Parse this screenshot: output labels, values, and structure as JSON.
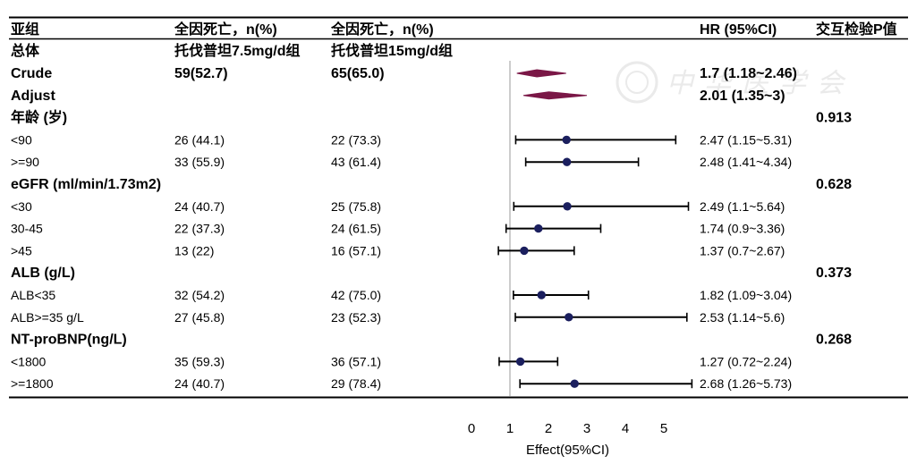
{
  "header": {
    "col_subgroup": "亚组",
    "col_group1": "全因死亡，n(%)",
    "col_group2": "全因死亡，n(%)",
    "col_hr": "HR (95%CI)",
    "col_p": "交互检验P值"
  },
  "subheader": {
    "subgroup": "总体",
    "group1": "托伐普坦7.5mg/d组",
    "group2": "托伐普坦15mg/d组"
  },
  "rows": [
    {
      "label": "Crude",
      "bold": true,
      "n1": "59(52.7)",
      "n2": "65(65.0)",
      "hr_text": "1.7 (1.18~2.46)",
      "est": 1.7,
      "lo": 1.18,
      "hi": 2.46,
      "shape": "diamond"
    },
    {
      "label": "Adjust",
      "bold": true,
      "hr_text": "2.01 (1.35~3)",
      "est": 2.01,
      "lo": 1.35,
      "hi": 3,
      "shape": "diamond"
    },
    {
      "label": "年龄 (岁)",
      "bold": true,
      "p": "0.913"
    },
    {
      "label": "<90",
      "n1": "26 (44.1)",
      "n2": "22 (73.3)",
      "hr_text": "2.47 (1.15~5.31)",
      "est": 2.47,
      "lo": 1.15,
      "hi": 5.31
    },
    {
      "label": ">=90",
      "n1": "33 (55.9)",
      "n2": "43 (61.4)",
      "hr_text": "2.48 (1.41~4.34)",
      "est": 2.48,
      "lo": 1.41,
      "hi": 4.34
    },
    {
      "label": "eGFR (ml/min/1.73m2)",
      "bold": true,
      "p": "0.628"
    },
    {
      "label": "<30",
      "n1": "24 (40.7)",
      "n2": "25 (75.8)",
      "hr_text": "2.49 (1.1~5.64)",
      "est": 2.49,
      "lo": 1.1,
      "hi": 5.64
    },
    {
      "label": "30-45",
      "n1": "22 (37.3)",
      "n2": "24 (61.5)",
      "hr_text": "1.74 (0.9~3.36)",
      "est": 1.74,
      "lo": 0.9,
      "hi": 3.36
    },
    {
      "label": ">45",
      "n1": "13 (22)",
      "n2": "16 (57.1)",
      "hr_text": "1.37 (0.7~2.67)",
      "est": 1.37,
      "lo": 0.7,
      "hi": 2.67
    },
    {
      "label": "ALB (g/L)",
      "bold": true,
      "p": "0.373"
    },
    {
      "label": "ALB<35",
      "n1": "32 (54.2)",
      "n2": "42 (75.0)",
      "hr_text": "1.82 (1.09~3.04)",
      "est": 1.82,
      "lo": 1.09,
      "hi": 3.04
    },
    {
      "label": "ALB>=35 g/L",
      "n1": "27 (45.8)",
      "n2": "23 (52.3)",
      "hr_text": "2.53 (1.14~5.6)",
      "est": 2.53,
      "lo": 1.14,
      "hi": 5.6
    },
    {
      "label": "NT-proBNP(ng/L)",
      "bold": true,
      "p": "0.268"
    },
    {
      "label": "<1800",
      "n1": "35 (59.3)",
      "n2": "36 (57.1)",
      "hr_text": "1.27 (0.72~2.24)",
      "est": 1.27,
      "lo": 0.72,
      "hi": 2.24
    },
    {
      "label": ">=1800",
      "n1": "24 (40.7)",
      "n2": "29 (78.4)",
      "hr_text": "2.68 (1.26~5.73)",
      "est": 2.68,
      "lo": 1.26,
      "hi": 5.73
    }
  ],
  "axis": {
    "ticks": [
      0,
      1,
      2,
      3,
      4,
      5
    ],
    "xlim": [
      0,
      5
    ],
    "reference": 1,
    "xlabel": "Effect(95%CI)"
  },
  "watermark": "中华医学会",
  "colors": {
    "point": "#1b1f5e",
    "diamond": "#7a1746",
    "line": "#000000",
    "reference": "#9a9a9a",
    "watermark": "#d9d9d9"
  },
  "chart_data": {
    "type": "forest",
    "categories": [
      "Crude",
      "Adjust",
      "<90",
      ">=90",
      "<30",
      "30-45",
      ">45",
      "ALB<35",
      "ALB>=35 g/L",
      "<1800",
      ">=1800"
    ],
    "estimates": [
      1.7,
      2.01,
      2.47,
      2.48,
      2.49,
      1.74,
      1.37,
      1.82,
      2.53,
      1.27,
      2.68
    ],
    "lower": [
      1.18,
      1.35,
      1.15,
      1.41,
      1.1,
      0.9,
      0.7,
      1.09,
      1.14,
      0.72,
      1.26
    ],
    "upper": [
      2.46,
      3,
      5.31,
      4.34,
      5.64,
      3.36,
      2.67,
      3.04,
      5.6,
      2.24,
      5.73
    ],
    "xlabel": "Effect(95%CI)",
    "xlim": [
      0,
      5
    ],
    "reference_line": 1
  }
}
